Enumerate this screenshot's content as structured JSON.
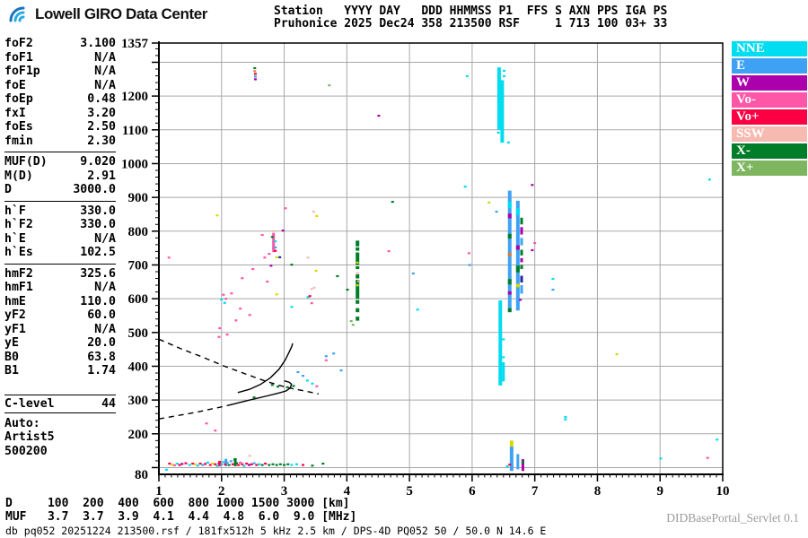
{
  "header": {
    "logo_text": "Lowell GIRO Data Center",
    "station_line1": "Station   YYYY DAY   DDD HHMMSS P1  FFS S AXN PPS IGA PS",
    "station_line2": "Pruhonice 2025 Dec24 358 213500 RSF     1 713 100 03+ 33"
  },
  "panel": {
    "sections": [
      {
        "rows": [
          [
            "foF2",
            "3.100"
          ],
          [
            "foF1",
            "N/A"
          ],
          [
            "foF1p",
            "N/A"
          ],
          [
            "foE",
            "N/A"
          ],
          [
            "foEp",
            "0.48"
          ],
          [
            "fxI",
            "3.20"
          ],
          [
            "foEs",
            "2.50"
          ],
          [
            "fmin",
            "2.30"
          ]
        ]
      },
      {
        "rows": [
          [
            "MUF(D)",
            "9.020"
          ],
          [
            "M(D)",
            "2.91"
          ],
          [
            "D",
            "3000.0"
          ]
        ]
      },
      {
        "rows": [
          [
            "h`F",
            "330.0"
          ],
          [
            "h`F2",
            "330.0"
          ],
          [
            "h`E",
            "N/A"
          ],
          [
            "h`Es",
            "102.5"
          ]
        ]
      },
      {
        "rows": [
          [
            "hmF2",
            "325.6"
          ],
          [
            "hmF1",
            "N/A"
          ],
          [
            "hmE",
            "110.0"
          ],
          [
            "yF2",
            "60.0"
          ],
          [
            "yF1",
            "N/A"
          ],
          [
            "yE",
            "20.0"
          ],
          [
            "B0",
            "63.8"
          ],
          [
            "B1",
            "1.74"
          ]
        ]
      }
    ],
    "clevel": {
      "label": "C-level",
      "value": "44"
    },
    "auto_lines": [
      "Auto:",
      "Artist5",
      "500200"
    ]
  },
  "legend": {
    "items": [
      {
        "label": "NNE",
        "color": "#00dcf0"
      },
      {
        "label": "E",
        "color": "#3fa1f3"
      },
      {
        "label": "W",
        "color": "#ab00ab"
      },
      {
        "label": "Vo-",
        "color": "#ff57a8"
      },
      {
        "label": "Vo+",
        "color": "#fb0043"
      },
      {
        "label": "SSW",
        "color": "#f6bab1"
      },
      {
        "label": "X-",
        "color": "#007d28"
      },
      {
        "label": "X+",
        "color": "#7eb55f"
      }
    ]
  },
  "footer": {
    "d_row": {
      "label": "D",
      "values": [
        "100",
        "200",
        "400",
        "600",
        "800",
        "1000",
        "1500",
        "3000"
      ],
      "unit": "[km]"
    },
    "muf_row": {
      "label": "MUF",
      "values": [
        "3.7",
        "3.7",
        "3.9",
        "4.1",
        "4.4",
        "4.8",
        "6.0",
        "9.0"
      ],
      "unit": "[MHz]"
    },
    "db_line": "db pq052 20251224 213500.rsf / 181fx512h 5 kHz 2.5 km / DPS-4D PQ052 50 / 50.0 N 14.6 E",
    "servlet": "DIDBasePortal_Servlet 0.1"
  },
  "chart_data": {
    "type": "scatter",
    "description": "Digisonde ionogram: echo height (km) vs sounding frequency (MHz)",
    "x_range": [
      1,
      10
    ],
    "y_range": [
      80,
      1357
    ],
    "x_ticks": [
      1,
      2,
      3,
      4,
      5,
      6,
      7,
      8,
      9,
      10
    ],
    "y_tick_labels": [
      1357,
      1200,
      1100,
      1000,
      900,
      800,
      700,
      600,
      500,
      400,
      300,
      200,
      80
    ],
    "y_grid": [
      100,
      200,
      300,
      400,
      500,
      600,
      700,
      800,
      900,
      1000,
      1100,
      1200,
      1300
    ],
    "x_unit": "MHz",
    "y_unit": "km",
    "grid": true,
    "legend_position": "right-outside",
    "palette": {
      "NNE": "#00dcf0",
      "E": "#3fa1f3",
      "W": "#ab00ab",
      "Vo-": "#ff57a8",
      "Vo+": "#fb0043",
      "SSW": "#f6bab1",
      "X-": "#007d28",
      "X+": "#7eb55f",
      "yellow": "#d8d800",
      "navy": "#2525a0",
      "orange": "#e07830"
    },
    "points": [
      [
        1.12,
        94,
        "NNE"
      ],
      [
        1.17,
        112,
        "Vo+"
      ],
      [
        1.21,
        109,
        "yellow"
      ],
      [
        1.25,
        107,
        "Vo-"
      ],
      [
        1.29,
        112,
        "NNE"
      ],
      [
        1.33,
        108,
        "Vo+"
      ],
      [
        1.37,
        111,
        "W"
      ],
      [
        1.43,
        113,
        "Vo+"
      ],
      [
        1.49,
        108,
        "NNE"
      ],
      [
        1.54,
        112,
        "Vo+"
      ],
      [
        1.58,
        110,
        "yellow"
      ],
      [
        1.62,
        106,
        "NNE"
      ],
      [
        1.66,
        112,
        "Vo+"
      ],
      [
        1.7,
        108,
        "E"
      ],
      [
        1.74,
        111,
        "Vo+"
      ],
      [
        1.78,
        115,
        "NNE"
      ],
      [
        1.82,
        108,
        "Vo+"
      ],
      [
        1.86,
        112,
        "yellow"
      ],
      [
        1.9,
        110,
        "Vo+"
      ],
      [
        1.93,
        105,
        "NNE"
      ],
      [
        1.96,
        112,
        "Vo+"
      ],
      [
        2.0,
        110,
        "E"
      ],
      [
        2.03,
        117,
        "NNE"
      ],
      [
        2.06,
        110,
        "Vo+"
      ],
      [
        2.09,
        115,
        "E"
      ],
      [
        2.12,
        108,
        "X-"
      ],
      [
        2.15,
        119,
        "E"
      ],
      [
        2.18,
        110,
        "Vo+"
      ],
      [
        2.21,
        124,
        "X-"
      ],
      [
        2.24,
        113,
        "X-"
      ],
      [
        2.27,
        108,
        "Vo+"
      ],
      [
        2.3,
        115,
        "Vo-"
      ],
      [
        2.33,
        110,
        "Vo+"
      ],
      [
        2.36,
        105,
        "NNE"
      ],
      [
        2.4,
        112,
        "Vo+"
      ],
      [
        2.44,
        108,
        "W"
      ],
      [
        2.45,
        135,
        "SSW"
      ],
      [
        2.48,
        110,
        "Vo+"
      ],
      [
        2.52,
        113,
        "E"
      ],
      [
        2.56,
        108,
        "Vo+"
      ],
      [
        2.6,
        110,
        "NNE"
      ],
      [
        2.65,
        108,
        "X-"
      ],
      [
        2.7,
        112,
        "Vo+"
      ],
      [
        2.76,
        108,
        "X-"
      ],
      [
        2.82,
        110,
        "X-"
      ],
      [
        2.88,
        108,
        "X-"
      ],
      [
        2.94,
        110,
        "X-"
      ],
      [
        3.0,
        108,
        "X-"
      ],
      [
        3.06,
        110,
        "X-"
      ],
      [
        3.12,
        108,
        "NNE"
      ],
      [
        3.2,
        110,
        "NNE"
      ],
      [
        3.3,
        108,
        "Vo+"
      ],
      [
        3.45,
        106,
        "X-"
      ],
      [
        3.62,
        112,
        "X-"
      ],
      [
        1.16,
        722,
        "Vo-"
      ],
      [
        1.93,
        847,
        "yellow"
      ],
      [
        1.96,
        487,
        "Vo-"
      ],
      [
        2.09,
        494,
        "Vo-"
      ],
      [
        1.97,
        513,
        "Vo-"
      ],
      [
        2.23,
        536,
        "Vo-"
      ],
      [
        2.3,
        571,
        "Vo-"
      ],
      [
        2.33,
        661,
        "Vo-"
      ],
      [
        2.5,
        688,
        "Vo-"
      ],
      [
        2.69,
        722,
        "Vo-"
      ],
      [
        2.65,
        789,
        "Vo-"
      ],
      [
        2.76,
        733,
        "Vo-"
      ],
      [
        2.98,
        802,
        "W"
      ],
      [
        3.02,
        868,
        "Vo-"
      ],
      [
        2.88,
        723,
        "yellow"
      ],
      [
        2.93,
        723,
        "navy"
      ],
      [
        3.12,
        701,
        "X-"
      ],
      [
        3.38,
        722,
        "SSW"
      ],
      [
        3.51,
        683,
        "yellow"
      ],
      [
        3.44,
        629,
        "SSW"
      ],
      [
        3.48,
        633,
        "SSW"
      ],
      [
        3.38,
        605,
        "NNE"
      ],
      [
        3.41,
        608,
        "Vo+"
      ],
      [
        3.44,
        587,
        "Vo-"
      ],
      [
        2.88,
        613,
        "yellow"
      ],
      [
        3.12,
        576,
        "NNE"
      ],
      [
        2.73,
        651,
        "Vo-"
      ],
      [
        2.79,
        698,
        "W"
      ],
      [
        3.52,
        845,
        "yellow"
      ],
      [
        3.47,
        858,
        "SSW"
      ],
      [
        2.03,
        612,
        "Vo-"
      ],
      [
        2.07,
        600,
        "Vo-"
      ],
      [
        2.0,
        598,
        "NNE"
      ],
      [
        2.05,
        588,
        "NNE"
      ],
      [
        2.16,
        616,
        "Vo-"
      ],
      [
        1.76,
        231,
        "Vo-"
      ],
      [
        1.9,
        210,
        "Vo-"
      ],
      [
        2.45,
        552,
        "Vo-"
      ],
      [
        2.86,
        770,
        "NNE"
      ],
      [
        2.86,
        752,
        "E"
      ],
      [
        2.81,
        783,
        "X-"
      ],
      [
        2.86,
        742,
        "Vo+"
      ],
      [
        2.83,
        800,
        "SSW"
      ],
      [
        3.22,
        383,
        "E"
      ],
      [
        3.3,
        372,
        "E"
      ],
      [
        3.37,
        358,
        "NNE"
      ],
      [
        3.45,
        349,
        "NNE"
      ],
      [
        3.52,
        341,
        "Vo-"
      ],
      [
        3.67,
        430,
        "E"
      ],
      [
        3.67,
        418,
        "Vo-"
      ],
      [
        3.79,
        438,
        "E"
      ],
      [
        3.91,
        388,
        "E"
      ],
      [
        2.52,
        308,
        "X-"
      ],
      [
        2.81,
        345,
        "X-"
      ],
      [
        2.9,
        340,
        "X-"
      ],
      [
        3.05,
        338,
        "X-"
      ],
      [
        3.15,
        342,
        "X-"
      ],
      [
        3.85,
        667,
        "X-"
      ],
      [
        4.01,
        627,
        "X-"
      ],
      [
        4.07,
        534,
        "X+"
      ],
      [
        4.1,
        523,
        "X+"
      ],
      [
        4.17,
        707,
        "yellow"
      ],
      [
        4.17,
        676,
        "SSW"
      ],
      [
        4.17,
        640,
        "yellow"
      ],
      [
        4.19,
        652,
        "SSW"
      ],
      [
        4.73,
        887,
        "X-"
      ],
      [
        4.67,
        741,
        "Vo-"
      ],
      [
        5.06,
        675,
        "E"
      ],
      [
        5.13,
        568,
        "NNE"
      ],
      [
        5.89,
        932,
        "NNE"
      ],
      [
        5.95,
        735,
        "Vo-"
      ],
      [
        5.96,
        700,
        "E"
      ],
      [
        6.27,
        885,
        "yellow"
      ],
      [
        6.39,
        858,
        "E"
      ],
      [
        2.53,
        1283,
        "X-"
      ],
      [
        2.53,
        1274,
        "orange"
      ],
      [
        2.54,
        1266,
        "Vo+"
      ],
      [
        2.54,
        1258,
        "E"
      ],
      [
        2.54,
        1250,
        "W"
      ],
      [
        3.72,
        1232,
        "X+"
      ],
      [
        4.51,
        1142,
        "W"
      ],
      [
        5.92,
        1259,
        "NNE"
      ],
      [
        9.79,
        953,
        "NNE"
      ],
      [
        6.51,
        1275,
        "NNE"
      ],
      [
        6.51,
        1259,
        "NNE"
      ],
      [
        6.42,
        1092,
        "NNE"
      ],
      [
        6.58,
        1063,
        "NNE"
      ],
      [
        6.5,
        480,
        "NNE"
      ],
      [
        6.5,
        427,
        "NNE"
      ],
      [
        6.77,
        597,
        "W"
      ],
      [
        6.56,
        104,
        "NNE"
      ],
      [
        6.6,
        109,
        "Vo+"
      ],
      [
        6.96,
        937,
        "W"
      ],
      [
        7.0,
        765,
        "Vo-"
      ],
      [
        6.96,
        744,
        "W"
      ],
      [
        7.29,
        659,
        "NNE"
      ],
      [
        7.29,
        627,
        "E"
      ],
      [
        8.31,
        436,
        "yellow"
      ],
      [
        7.49,
        250,
        "NNE"
      ],
      [
        7.49,
        243,
        "NNE"
      ],
      [
        9.91,
        183,
        "NNE"
      ],
      [
        9.01,
        127,
        "NNE"
      ],
      [
        9.76,
        129,
        "Vo-"
      ]
    ],
    "bars": [
      [
        6.43,
        1100,
        1285,
        "NNE",
        4
      ],
      [
        6.48,
        1062,
        1247,
        "NNE",
        4
      ],
      [
        6.45,
        343,
        595,
        "NNE",
        4
      ],
      [
        6.5,
        355,
        412,
        "NNE",
        3
      ],
      [
        6.6,
        565,
        920,
        "E",
        4
      ],
      [
        6.73,
        565,
        890,
        "E",
        4
      ],
      [
        6.6,
        868,
        888,
        "NNE",
        4
      ],
      [
        6.6,
        838,
        852,
        "W",
        4
      ],
      [
        6.6,
        778,
        792,
        "X-",
        4
      ],
      [
        6.6,
        726,
        736,
        "orange",
        4
      ],
      [
        6.6,
        642,
        658,
        "X-",
        4
      ],
      [
        6.6,
        612,
        622,
        "W",
        4
      ],
      [
        6.6,
        560,
        572,
        "X-",
        4
      ],
      [
        6.73,
        848,
        868,
        "NNE",
        4
      ],
      [
        6.73,
        745,
        758,
        "W",
        4
      ],
      [
        6.73,
        678,
        698,
        "X-",
        4
      ],
      [
        6.73,
        634,
        644,
        "yellow",
        4
      ],
      [
        6.79,
        820,
        840,
        "X-",
        3
      ],
      [
        6.79,
        790,
        812,
        "W",
        3
      ],
      [
        6.79,
        758,
        780,
        "E",
        3
      ],
      [
        6.79,
        728,
        745,
        "X-",
        3
      ],
      [
        6.79,
        708,
        720,
        "W",
        3
      ],
      [
        6.79,
        688,
        700,
        "X-",
        3
      ],
      [
        6.79,
        648,
        668,
        "navy",
        3
      ],
      [
        6.79,
        615,
        640,
        "E",
        3
      ],
      [
        4.17,
        755,
        772,
        "X-",
        4
      ],
      [
        4.17,
        742,
        752,
        "X-",
        4
      ],
      [
        4.17,
        700,
        737,
        "X-",
        4
      ],
      [
        4.17,
        688,
        696,
        "X-",
        4
      ],
      [
        4.17,
        660,
        672,
        "X-",
        4
      ],
      [
        4.17,
        600,
        656,
        "X-",
        4
      ],
      [
        4.17,
        585,
        596,
        "X-",
        4
      ],
      [
        4.17,
        560,
        572,
        "X-",
        4
      ],
      [
        4.17,
        535,
        547,
        "X-",
        4
      ],
      [
        6.63,
        90,
        162,
        "E",
        4
      ],
      [
        6.63,
        162,
        180,
        "yellow",
        4
      ],
      [
        6.73,
        95,
        140,
        "E",
        3
      ],
      [
        6.81,
        90,
        125,
        "W",
        3
      ],
      [
        6.81,
        112,
        120,
        "X-",
        3
      ],
      [
        2.07,
        104,
        126,
        "E",
        3
      ],
      [
        2.22,
        104,
        128,
        "X-",
        3
      ],
      [
        1.97,
        104,
        120,
        "Vo+",
        3
      ],
      [
        2.83,
        738,
        795,
        "Vo-",
        3
      ]
    ],
    "curves": [
      {
        "name": "artist-f2-trace",
        "dashed": false,
        "pts": [
          [
            2.26,
            322
          ],
          [
            2.45,
            332
          ],
          [
            2.62,
            346
          ],
          [
            2.78,
            366
          ],
          [
            2.92,
            392
          ],
          [
            3.02,
            420
          ],
          [
            3.08,
            442
          ],
          [
            3.12,
            458
          ],
          [
            3.135,
            468
          ]
        ]
      },
      {
        "name": "transmission-curve-upper",
        "dashed": true,
        "pts": [
          [
            1.0,
            480
          ],
          [
            1.35,
            452
          ],
          [
            1.7,
            427
          ],
          [
            2.05,
            400
          ],
          [
            2.4,
            376
          ],
          [
            2.7,
            356
          ],
          [
            2.95,
            342
          ],
          [
            3.15,
            333
          ],
          [
            3.35,
            326
          ],
          [
            3.55,
            318
          ]
        ]
      },
      {
        "name": "transmission-curve-lower-dashed",
        "dashed": true,
        "pts": [
          [
            1.0,
            244
          ],
          [
            1.3,
            254
          ],
          [
            1.6,
            264
          ],
          [
            1.9,
            276
          ],
          [
            2.1,
            284
          ]
        ]
      },
      {
        "name": "model-hook",
        "dashed": false,
        "pts": [
          [
            2.1,
            284
          ],
          [
            2.4,
            298
          ],
          [
            2.7,
            311
          ],
          [
            2.9,
            320
          ],
          [
            3.03,
            327
          ],
          [
            3.1,
            336
          ],
          [
            3.115,
            347
          ],
          [
            3.08,
            353
          ],
          [
            3.0,
            357
          ]
        ]
      }
    ]
  }
}
